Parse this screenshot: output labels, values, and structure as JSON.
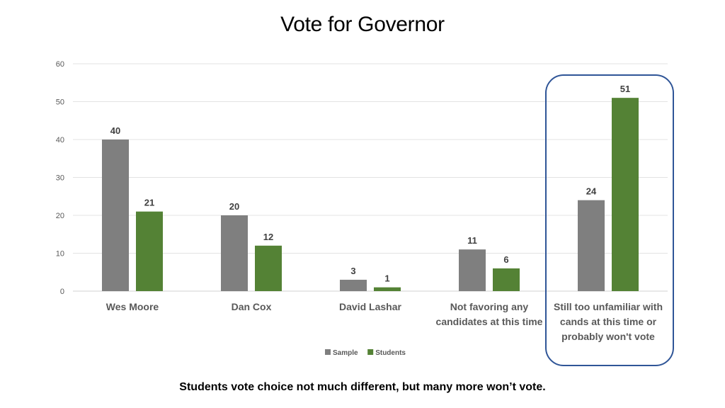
{
  "slide": {
    "title": "Vote for Governor",
    "caption": "Students vote choice not much different, but many more won’t vote."
  },
  "chart_data": {
    "type": "bar",
    "title": "",
    "xlabel": "",
    "ylabel": "",
    "ylim": [
      0,
      60
    ],
    "yticks": [
      0,
      10,
      20,
      30,
      40,
      50,
      60
    ],
    "grid": true,
    "legend_position": "bottom",
    "categories": [
      [
        "Wes Moore"
      ],
      [
        "Dan Cox"
      ],
      [
        "David Lashar"
      ],
      [
        "Not favoring any",
        "candidates at this time"
      ],
      [
        "Still too unfamiliar with",
        "cands at this time or",
        "probably won't vote"
      ]
    ],
    "series": [
      {
        "name": "Sample",
        "color": "#7f7f7f",
        "values": [
          40,
          20,
          3,
          11,
          24
        ]
      },
      {
        "name": "Students",
        "color": "#548235",
        "values": [
          21,
          12,
          1,
          6,
          51
        ]
      }
    ],
    "highlight_color": "#2f5597",
    "highlighted_category_index": 4
  }
}
